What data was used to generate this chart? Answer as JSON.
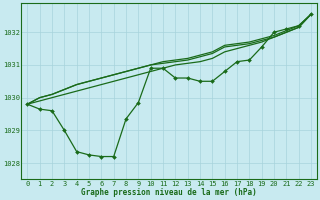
{
  "title": "Graphe pression niveau de la mer (hPa)",
  "bg_color": "#c8eaf0",
  "line_color": "#1a6b1a",
  "marker_color": "#1a6b1a",
  "grid_color": "#a8d4dc",
  "x_min": -0.5,
  "x_max": 23.5,
  "y_min": 1027.5,
  "y_max": 1032.9,
  "y_ticks": [
    1028,
    1029,
    1030,
    1031,
    1032
  ],
  "x_ticks": [
    0,
    1,
    2,
    3,
    4,
    5,
    6,
    7,
    8,
    9,
    10,
    11,
    12,
    13,
    14,
    15,
    16,
    17,
    18,
    19,
    20,
    21,
    22,
    23
  ],
  "main_series": [
    1029.8,
    1029.65,
    1029.6,
    1029.0,
    1028.35,
    1028.25,
    1028.2,
    1028.2,
    1029.35,
    1029.85,
    1030.9,
    1030.9,
    1030.6,
    1030.6,
    1030.5,
    1030.5,
    1030.8,
    1031.1,
    1031.15,
    1031.55,
    1032.0,
    1032.1,
    1032.2,
    1032.55
  ],
  "trend1": [
    1029.8,
    1030.0,
    1030.1,
    1030.25,
    1030.4,
    1030.5,
    1030.6,
    1030.7,
    1030.8,
    1030.9,
    1031.0,
    1031.1,
    1031.15,
    1031.2,
    1031.3,
    1031.4,
    1031.6,
    1031.65,
    1031.7,
    1031.8,
    1031.9,
    1032.05,
    1032.2,
    1032.55
  ],
  "trend2": [
    1029.8,
    1030.0,
    1030.1,
    1030.25,
    1030.4,
    1030.5,
    1030.6,
    1030.7,
    1030.8,
    1030.9,
    1031.0,
    1031.05,
    1031.1,
    1031.15,
    1031.25,
    1031.35,
    1031.55,
    1031.6,
    1031.65,
    1031.75,
    1031.85,
    1032.0,
    1032.15,
    1032.55
  ],
  "trend3": [
    1029.8,
    1029.9,
    1030.0,
    1030.1,
    1030.2,
    1030.3,
    1030.4,
    1030.5,
    1030.6,
    1030.7,
    1030.8,
    1030.9,
    1031.0,
    1031.05,
    1031.1,
    1031.2,
    1031.4,
    1031.5,
    1031.6,
    1031.7,
    1031.85,
    1032.0,
    1032.15,
    1032.55
  ]
}
